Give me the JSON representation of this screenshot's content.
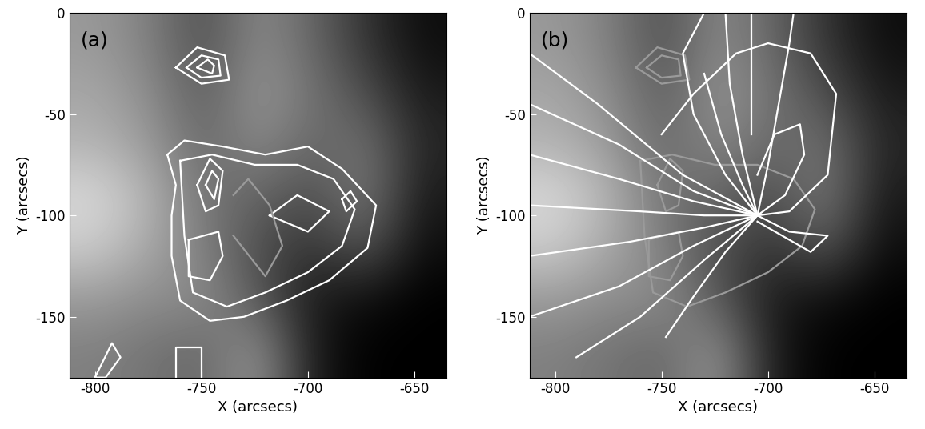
{
  "chart_data": [
    {
      "type": "image",
      "label": "(a)",
      "x_label": "X (arcsecs)",
      "y_label": "Y (arcsecs)",
      "xlim": [
        -812,
        -635
      ],
      "ylim": [
        -180,
        0
      ],
      "xticks": [
        -800,
        -750,
        -700,
        -650
      ],
      "yticks": [
        0,
        -50,
        -100,
        -150
      ],
      "zlim": [
        0,
        1
      ],
      "cells": [
        [
          0.6,
          0.5,
          0.3,
          0.55,
          0.4,
          0.2,
          0.05
        ],
        [
          0.65,
          0.55,
          0.35,
          0.6,
          0.45,
          0.3,
          0.1
        ],
        [
          0.7,
          0.6,
          0.4,
          0.55,
          0.4,
          0.45,
          0.15
        ],
        [
          0.85,
          0.7,
          0.45,
          0.4,
          0.3,
          0.5,
          0.1
        ],
        [
          0.8,
          0.65,
          0.5,
          0.3,
          0.2,
          0.35,
          0.05
        ],
        [
          0.6,
          0.55,
          0.55,
          0.35,
          0.1,
          0.05,
          0.0
        ],
        [
          0.5,
          0.45,
          0.4,
          0.6,
          0.1,
          0.0,
          0.0
        ]
      ],
      "series": [
        {
          "color": "#ffffff",
          "x": [
            -762,
            -752,
            -739,
            -737,
            -750,
            -762
          ],
          "y": [
            -27,
            -17,
            -21,
            -33,
            -35,
            -27
          ]
        },
        {
          "color": "#ffffff",
          "x": [
            -757,
            -750,
            -742,
            -741,
            -750,
            -757
          ],
          "y": [
            -27,
            -21,
            -23,
            -31,
            -32,
            -27
          ]
        },
        {
          "color": "#ffffff",
          "x": [
            -752,
            -747,
            -744,
            -745,
            -752
          ],
          "y": [
            -27,
            -23,
            -26,
            -30,
            -27
          ]
        },
        {
          "color": "#ffffff",
          "x": [
            -766,
            -758,
            -740,
            -720,
            -700,
            -684,
            -668,
            -672,
            -690,
            -710,
            -730,
            -746,
            -760,
            -764,
            -764,
            -762,
            -766
          ],
          "y": [
            -70,
            -63,
            -66,
            -70,
            -66,
            -77,
            -95,
            -116,
            -132,
            -142,
            -150,
            -152,
            -142,
            -120,
            -100,
            -85,
            -70
          ]
        },
        {
          "color": "#ffffff",
          "x": [
            -760,
            -745,
            -725,
            -705,
            -688,
            -678,
            -684,
            -700,
            -720,
            -738,
            -754,
            -758,
            -760
          ],
          "y": [
            -73,
            -70,
            -75,
            -75,
            -82,
            -97,
            -115,
            -128,
            -138,
            -145,
            -138,
            -110,
            -73
          ]
        },
        {
          "color": "#ffffff",
          "x": [
            -752,
            -746,
            -740,
            -742,
            -748,
            -752
          ],
          "y": [
            -85,
            -72,
            -78,
            -95,
            -98,
            -85
          ]
        },
        {
          "color": "#ffffff",
          "x": [
            -748,
            -745,
            -742,
            -744,
            -748
          ],
          "y": [
            -85,
            -78,
            -82,
            -92,
            -85
          ]
        },
        {
          "color": "#ffffff",
          "x": [
            -756,
            -742,
            -740,
            -746,
            -756,
            -756
          ],
          "y": [
            -112,
            -108,
            -120,
            -132,
            -130,
            -112
          ]
        },
        {
          "color": "#ffffff",
          "x": [
            -718,
            -705,
            -690,
            -700,
            -718
          ],
          "y": [
            -100,
            -90,
            -98,
            -108,
            -100
          ]
        },
        {
          "color": "#ffffff",
          "x": [
            -684,
            -680,
            -677,
            -682,
            -684
          ],
          "y": [
            -92,
            -88,
            -93,
            -98,
            -92
          ]
        },
        {
          "color": "#ffffff",
          "x": [
            -800,
            -792,
            -788,
            -795,
            -800
          ],
          "y": [
            -180,
            -163,
            -170,
            -180,
            -180
          ]
        },
        {
          "color": "#ffffff",
          "x": [
            -762,
            -762,
            -750,
            -750
          ],
          "y": [
            -180,
            -165,
            -165,
            -180
          ]
        },
        {
          "color": "#9a9a9a",
          "x": [
            -735,
            -728,
            -718,
            -712,
            -720,
            -735
          ],
          "y": [
            -90,
            -82,
            -95,
            -115,
            -130,
            -110
          ]
        }
      ]
    },
    {
      "type": "image",
      "label": "(b)",
      "x_label": "X (arcsecs)",
      "y_label": "Y (arcsecs)",
      "xlim": [
        -812,
        -635
      ],
      "ylim": [
        -180,
        0
      ],
      "xticks": [
        -800,
        -750,
        -700,
        -650
      ],
      "yticks": [
        0,
        -50,
        -100,
        -150
      ],
      "zlim": [
        0,
        1
      ],
      "cells": [
        [
          0.6,
          0.5,
          0.3,
          0.55,
          0.4,
          0.2,
          0.05
        ],
        [
          0.65,
          0.55,
          0.35,
          0.6,
          0.45,
          0.3,
          0.1
        ],
        [
          0.7,
          0.6,
          0.4,
          0.55,
          0.4,
          0.45,
          0.15
        ],
        [
          0.85,
          0.7,
          0.45,
          0.4,
          0.3,
          0.5,
          0.1
        ],
        [
          0.8,
          0.65,
          0.5,
          0.3,
          0.2,
          0.35,
          0.05
        ],
        [
          0.6,
          0.55,
          0.55,
          0.35,
          0.1,
          0.05,
          0.0
        ],
        [
          0.5,
          0.45,
          0.4,
          0.6,
          0.1,
          0.0,
          0.0
        ]
      ],
      "series": [
        {
          "color": "#9a9a9a",
          "x": [
            -762,
            -752,
            -739,
            -737,
            -750,
            -762
          ],
          "y": [
            -27,
            -17,
            -21,
            -33,
            -35,
            -27
          ]
        },
        {
          "color": "#9a9a9a",
          "x": [
            -757,
            -750,
            -742,
            -741,
            -750,
            -757
          ],
          "y": [
            -27,
            -21,
            -23,
            -31,
            -32,
            -27
          ]
        },
        {
          "color": "#9a9a9a",
          "x": [
            -752,
            -746,
            -740,
            -742,
            -748,
            -752
          ],
          "y": [
            -85,
            -72,
            -78,
            -95,
            -98,
            -85
          ]
        },
        {
          "color": "#9a9a9a",
          "x": [
            -756,
            -742,
            -740,
            -746,
            -756,
            -756
          ],
          "y": [
            -112,
            -108,
            -120,
            -132,
            -130,
            -112
          ]
        },
        {
          "color": "#9a9a9a",
          "x": [
            -760,
            -745,
            -725,
            -705,
            -688,
            -678,
            -684,
            -700,
            -720,
            -738,
            -754,
            -758,
            -760
          ],
          "y": [
            -73,
            -70,
            -75,
            -75,
            -82,
            -97,
            -115,
            -128,
            -138,
            -145,
            -138,
            -110,
            -73
          ]
        },
        {
          "color": "#ffffff",
          "x": [
            -812,
            -780,
            -740,
            -705
          ],
          "y": [
            -20,
            -45,
            -80,
            -100
          ]
        },
        {
          "color": "#ffffff",
          "x": [
            -812,
            -770,
            -735,
            -705
          ],
          "y": [
            -45,
            -65,
            -88,
            -100
          ]
        },
        {
          "color": "#ffffff",
          "x": [
            -812,
            -770,
            -735,
            -705
          ],
          "y": [
            -70,
            -82,
            -93,
            -100
          ]
        },
        {
          "color": "#ffffff",
          "x": [
            -812,
            -760,
            -730,
            -705
          ],
          "y": [
            -95,
            -98,
            -100,
            -100
          ]
        },
        {
          "color": "#ffffff",
          "x": [
            -812,
            -765,
            -730,
            -705
          ],
          "y": [
            -120,
            -113,
            -106,
            -100
          ]
        },
        {
          "color": "#ffffff",
          "x": [
            -812,
            -770,
            -735,
            -705
          ],
          "y": [
            -150,
            -135,
            -115,
            -100
          ]
        },
        {
          "color": "#ffffff",
          "x": [
            -790,
            -760,
            -730,
            -705
          ],
          "y": [
            -170,
            -150,
            -122,
            -100
          ]
        },
        {
          "color": "#ffffff",
          "x": [
            -748,
            -735,
            -720,
            -705
          ],
          "y": [
            -160,
            -140,
            -118,
            -100
          ]
        },
        {
          "color": "#ffffff",
          "x": [
            -705,
            -720,
            -735,
            -740,
            -730
          ],
          "y": [
            -100,
            -80,
            -50,
            -20,
            0
          ]
        },
        {
          "color": "#ffffff",
          "x": [
            -705,
            -712,
            -718,
            -720
          ],
          "y": [
            -100,
            -70,
            -35,
            0
          ]
        },
        {
          "color": "#ffffff",
          "x": [
            -705,
            -700,
            -695,
            -690,
            -688
          ],
          "y": [
            -100,
            -75,
            -45,
            -15,
            0
          ]
        },
        {
          "color": "#ffffff",
          "x": [
            -705,
            -690,
            -672,
            -668,
            -680,
            -700,
            -715,
            -735,
            -750
          ],
          "y": [
            -100,
            -98,
            -80,
            -40,
            -20,
            -15,
            -20,
            -40,
            -60
          ]
        },
        {
          "color": "#ffffff",
          "x": [
            -705,
            -692,
            -683,
            -685,
            -697,
            -705
          ],
          "y": [
            -100,
            -90,
            -70,
            -55,
            -60,
            -80
          ]
        },
        {
          "color": "#ffffff",
          "x": [
            -705,
            -690,
            -672,
            -680,
            -705
          ],
          "y": [
            -100,
            -108,
            -110,
            -118,
            -103
          ]
        },
        {
          "color": "#ffffff",
          "x": [
            -705,
            -712,
            -722,
            -730
          ],
          "y": [
            -100,
            -85,
            -60,
            -30
          ]
        },
        {
          "color": "#ffffff",
          "x": [
            -708,
            -708
          ],
          "y": [
            0,
            -60
          ]
        }
      ]
    }
  ]
}
